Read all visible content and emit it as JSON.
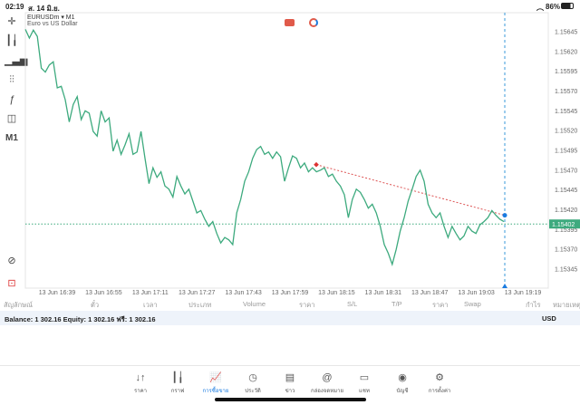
{
  "status": {
    "time": "02:19",
    "date": "ส. 14 มิ.ย.",
    "battery": "86%"
  },
  "chart": {
    "symbol": "EURUSDm",
    "timeframe": "M1",
    "description": "Euro vs US Dollar",
    "current_price": "1.15402",
    "line_color": "#3daa7e",
    "accent": "#1a7be0"
  },
  "toolbar": {
    "timeframe_label": "M1"
  },
  "chart_data": {
    "type": "line",
    "ylim": [
      1.1532,
      1.1567
    ],
    "yticks": [
      "1.15645",
      "1.15620",
      "1.15595",
      "1.15570",
      "1.15545",
      "1.15520",
      "1.15495",
      "1.15470",
      "1.15445",
      "1.15420",
      "1.15395",
      "1.15370",
      "1.15345"
    ],
    "xticks": [
      "13 Jun 16:39",
      "13 Jun 16:55",
      "13 Jun 17:11",
      "13 Jun 17:27",
      "13 Jun 17:43",
      "13 Jun 17:59",
      "13 Jun 18:15",
      "13 Jun 18:31",
      "13 Jun 18:47",
      "13 Jun 19:03",
      "13 Jun 19:19"
    ],
    "values": [
      1.15648,
      1.15637,
      1.15647,
      1.15639,
      1.15599,
      1.15594,
      1.15603,
      1.15607,
      1.15574,
      1.15576,
      1.15559,
      1.15531,
      1.15553,
      1.15563,
      1.15534,
      1.15545,
      1.15542,
      1.15519,
      1.15513,
      1.15545,
      1.15531,
      1.15536,
      1.15494,
      1.15508,
      1.1549,
      1.15502,
      1.15516,
      1.1549,
      1.15493,
      1.15519,
      1.15485,
      1.15453,
      1.15473,
      1.15461,
      1.15468,
      1.1545,
      1.15446,
      1.15436,
      1.15462,
      1.1545,
      1.1544,
      1.15446,
      1.15431,
      1.15416,
      1.15419,
      1.15408,
      1.15399,
      1.15405,
      1.1539,
      1.15378,
      1.15385,
      1.15382,
      1.15376,
      1.15416,
      1.15433,
      1.15456,
      1.15468,
      1.15485,
      1.15496,
      1.155,
      1.1549,
      1.15493,
      1.15485,
      1.15493,
      1.15487,
      1.15456,
      1.15473,
      1.15488,
      1.15485,
      1.15473,
      1.15479,
      1.15468,
      1.15473,
      1.15468,
      1.1547,
      1.15473,
      1.15462,
      1.15465,
      1.15456,
      1.1545,
      1.15439,
      1.1541,
      1.15433,
      1.15446,
      1.15442,
      1.15433,
      1.15422,
      1.15427,
      1.15416,
      1.15399,
      1.15376,
      1.15365,
      1.15351,
      1.1537,
      1.15393,
      1.1541,
      1.15431,
      1.15446,
      1.15462,
      1.1547,
      1.15456,
      1.15427,
      1.15416,
      1.1541,
      1.15416,
      1.15399,
      1.15385,
      1.15399,
      1.1539,
      1.15382,
      1.15387,
      1.15399,
      1.15393,
      1.1539,
      1.15401,
      1.15405,
      1.1541,
      1.15419,
      1.15413,
      1.15408,
      1.15405
    ],
    "current_line": 1.15402,
    "trade_line": {
      "from": 1.15477,
      "to": 1.15413
    }
  },
  "table": {
    "columns": [
      "สัญลักษณ์",
      "ตั๋ว",
      "เวลา",
      "ประเภท",
      "Volume",
      "ราคา",
      "S/L",
      "T/P",
      "ราคา",
      "Swap",
      "กำไร",
      "หมายเหตุ"
    ]
  },
  "balance": {
    "text": "Balance: 1 302.16 Equity: 1 302.16 ฟรี: 1 302.16",
    "currency": "USD"
  },
  "tabs": [
    {
      "label": "ราคา",
      "icon": "↓↑"
    },
    {
      "label": "กราฟ",
      "icon": "┃╽"
    },
    {
      "label": "การซื้อขาย",
      "icon": "📈"
    },
    {
      "label": "ประวัติ",
      "icon": "◷"
    },
    {
      "label": "ข่าว",
      "icon": "▤"
    },
    {
      "label": "กล่องจดหมาย",
      "icon": "@"
    },
    {
      "label": "แชท",
      "icon": "▭"
    },
    {
      "label": "บัญชี",
      "icon": "◉"
    },
    {
      "label": "การตั้งค่า",
      "icon": "⚙"
    }
  ]
}
